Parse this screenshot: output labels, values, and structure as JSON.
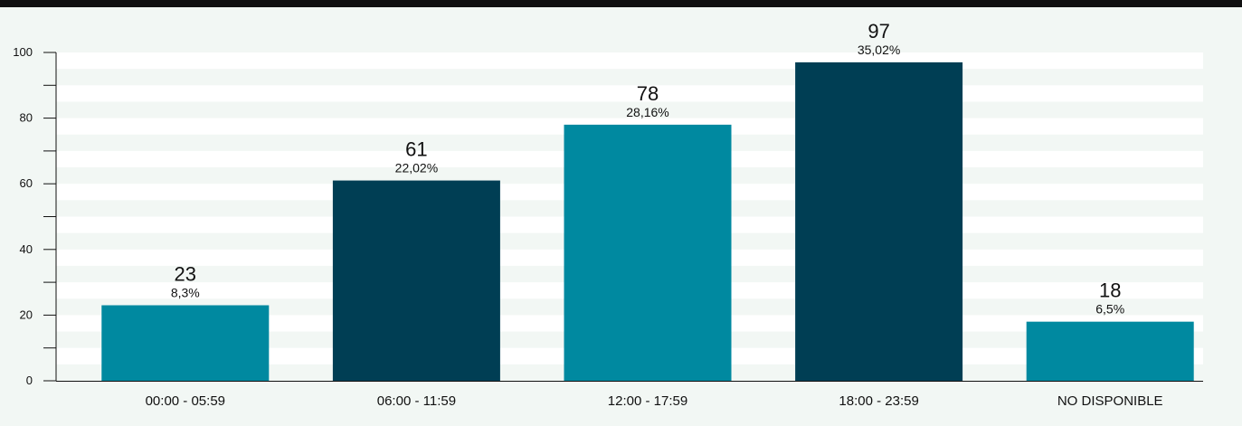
{
  "chart_data": {
    "type": "bar",
    "title": "",
    "xlabel": "",
    "ylabel": "",
    "categories": [
      "00:00 - 05:59",
      "06:00 - 11:59",
      "12:00 - 17:59",
      "18:00 - 23:59",
      "NO DISPONIBLE"
    ],
    "values": [
      23,
      61,
      78,
      97,
      18
    ],
    "percent_labels": [
      "8,3%",
      "22,02%",
      "28,16%",
      "35,02%",
      "6,5%"
    ],
    "ylim": [
      0,
      100
    ],
    "y_ticks": [
      0,
      20,
      40,
      60,
      80,
      100
    ],
    "y_minor_ticks": [
      10,
      30,
      50,
      70,
      90
    ],
    "grid": "horizontal-bands",
    "legend": "none",
    "bar_colors": [
      "#0089a0",
      "#003e54",
      "#0089a0",
      "#003e54",
      "#0089a0"
    ],
    "band_color": "#ffffff",
    "background_color": "#f2f7f4"
  }
}
